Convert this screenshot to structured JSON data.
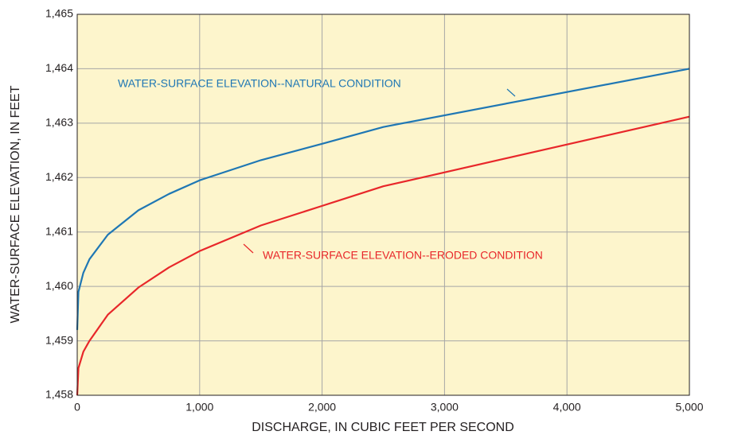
{
  "chart_data": {
    "type": "line",
    "xlabel": "DISCHARGE, IN CUBIC FEET PER SECOND",
    "ylabel": "WATER-SURFACE ELEVATION, IN FEET",
    "x": [
      0,
      10,
      50,
      100,
      250,
      500,
      750,
      1000,
      1500,
      2000,
      2500,
      5000
    ],
    "series": [
      {
        "name": "WATER-SURFACE ELEVATION--NATURAL CONDITION",
        "color": "#1f77b4",
        "values": [
          1459.2,
          1459.9,
          1460.25,
          1460.5,
          1460.95,
          1461.4,
          1461.7,
          1461.95,
          1462.32,
          1462.62,
          1462.93,
          1464.0
        ]
      },
      {
        "name": "WATER-SURFACE ELEVATION--ERODED CONDITION",
        "color": "#e8272a",
        "values": [
          1458.0,
          1458.5,
          1458.8,
          1459.0,
          1459.48,
          1459.98,
          1460.35,
          1460.65,
          1461.12,
          1461.48,
          1461.84,
          1463.12
        ]
      }
    ],
    "xlim": [
      0,
      5000
    ],
    "xticks": [
      0,
      {
        "value": 1000,
        "label": "1,000"
      },
      {
        "value": 2000,
        "label": "2,000"
      },
      {
        "value": 3000,
        "label": "3,000"
      },
      {
        "value": 4000,
        "label": "4,000"
      },
      {
        "value": 5000,
        "label": "5,000"
      }
    ],
    "ylim": [
      1458,
      1465
    ],
    "yticks": [
      {
        "value": 1458,
        "label": "1,458"
      },
      {
        "value": 1459,
        "label": "1,459"
      },
      {
        "value": 1460,
        "label": "1,460"
      },
      {
        "value": 1461,
        "label": "1,461"
      },
      {
        "value": 1462,
        "label": "1,462"
      },
      {
        "value": 1463,
        "label": "1,463"
      },
      {
        "value": 1464,
        "label": "1,464"
      },
      {
        "value": 1465,
        "label": "1,465"
      }
    ],
    "grid": true
  }
}
